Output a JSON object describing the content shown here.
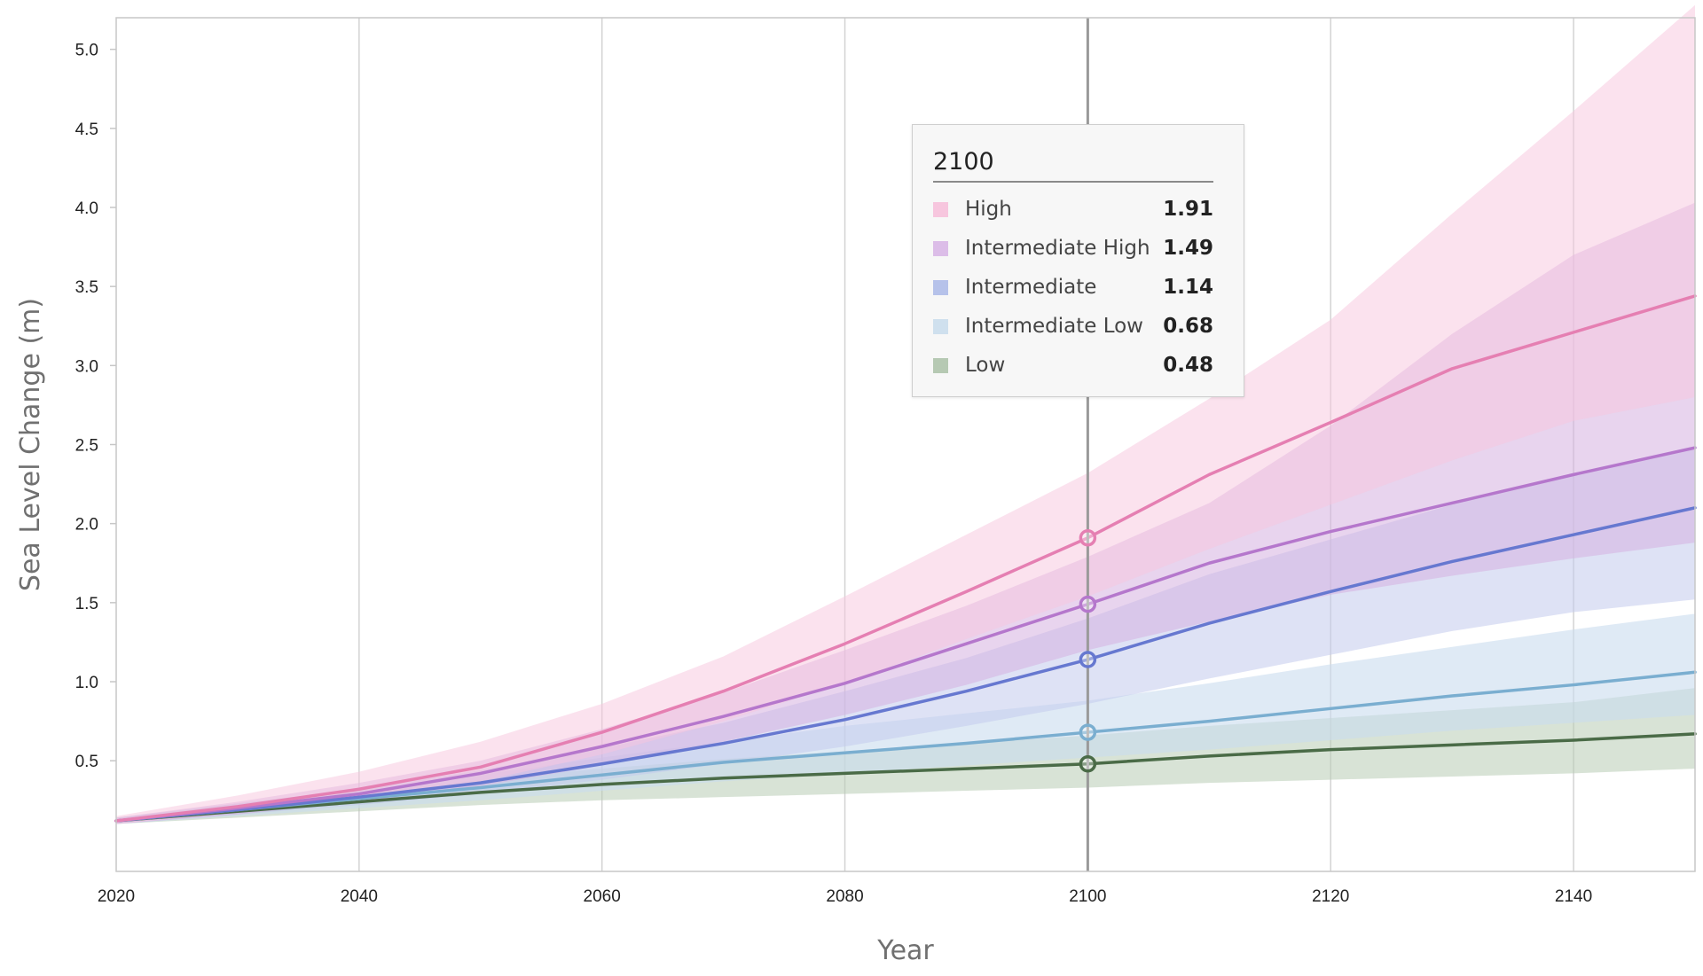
{
  "chart_data": {
    "type": "line",
    "title": "",
    "xlabel": "Year",
    "ylabel": "Sea Level Change (m)",
    "xlim": [
      2020,
      2150
    ],
    "ylim": [
      -0.2,
      5.2
    ],
    "xticks": [
      2020,
      2040,
      2060,
      2080,
      2100,
      2120,
      2140
    ],
    "yticks": [
      0.5,
      1.0,
      1.5,
      2.0,
      2.5,
      3.0,
      3.5,
      4.0,
      4.5,
      5.0
    ],
    "x": [
      2020,
      2030,
      2040,
      2050,
      2060,
      2070,
      2080,
      2090,
      2100,
      2110,
      2120,
      2130,
      2140,
      2150
    ],
    "highlight_year": 2100,
    "series": [
      {
        "name": "Low",
        "color": "#4a6b47",
        "band_color": "#b8ccb4",
        "band_opacity": 0.55,
        "values": [
          0.12,
          0.18,
          0.24,
          0.3,
          0.35,
          0.39,
          0.42,
          0.45,
          0.48,
          0.53,
          0.57,
          0.6,
          0.63,
          0.67
        ],
        "lower": [
          0.1,
          0.14,
          0.18,
          0.22,
          0.25,
          0.27,
          0.29,
          0.31,
          0.33,
          0.36,
          0.38,
          0.4,
          0.42,
          0.45
        ],
        "upper": [
          0.14,
          0.22,
          0.3,
          0.38,
          0.45,
          0.51,
          0.56,
          0.61,
          0.66,
          0.72,
          0.77,
          0.82,
          0.87,
          0.96
        ]
      },
      {
        "name": "Intermediate Low",
        "color": "#7aaed0",
        "band_color": "#c9dcee",
        "band_opacity": 0.6,
        "values": [
          0.12,
          0.19,
          0.26,
          0.33,
          0.41,
          0.49,
          0.55,
          0.61,
          0.68,
          0.75,
          0.83,
          0.91,
          0.98,
          1.06
        ],
        "lower": [
          0.1,
          0.15,
          0.2,
          0.25,
          0.31,
          0.37,
          0.42,
          0.47,
          0.52,
          0.57,
          0.63,
          0.69,
          0.74,
          0.79
        ],
        "upper": [
          0.14,
          0.23,
          0.32,
          0.41,
          0.52,
          0.62,
          0.72,
          0.8,
          0.88,
          0.99,
          1.11,
          1.22,
          1.33,
          1.43
        ]
      },
      {
        "name": "Intermediate",
        "color": "#6678d0",
        "band_color": "#c2caec",
        "band_opacity": 0.55,
        "values": [
          0.12,
          0.19,
          0.27,
          0.36,
          0.48,
          0.61,
          0.76,
          0.94,
          1.14,
          1.37,
          1.57,
          1.76,
          1.93,
          2.1
        ],
        "lower": [
          0.1,
          0.16,
          0.22,
          0.29,
          0.38,
          0.48,
          0.59,
          0.72,
          0.86,
          1.02,
          1.17,
          1.32,
          1.44,
          1.52
        ],
        "upper": [
          0.14,
          0.23,
          0.32,
          0.44,
          0.58,
          0.74,
          0.94,
          1.15,
          1.4,
          1.68,
          1.9,
          2.12,
          2.32,
          2.49
        ]
      },
      {
        "name": "Intermediate High",
        "color": "#b577cc",
        "band_color": "#d5b1e0",
        "band_opacity": 0.55,
        "values": [
          0.12,
          0.2,
          0.29,
          0.42,
          0.59,
          0.78,
          0.99,
          1.24,
          1.49,
          1.75,
          1.95,
          2.13,
          2.31,
          2.48
        ],
        "lower": [
          0.1,
          0.16,
          0.24,
          0.34,
          0.47,
          0.62,
          0.79,
          0.98,
          1.2,
          1.38,
          1.55,
          1.67,
          1.78,
          1.88
        ],
        "upper": [
          0.14,
          0.24,
          0.36,
          0.5,
          0.7,
          0.93,
          1.2,
          1.48,
          1.79,
          2.13,
          2.62,
          3.2,
          3.7,
          4.03
        ]
      },
      {
        "name": "High",
        "color": "#e57fb2",
        "band_color": "#f7c6de",
        "band_opacity": 0.5,
        "values": [
          0.12,
          0.21,
          0.32,
          0.46,
          0.68,
          0.94,
          1.24,
          1.57,
          1.91,
          2.31,
          2.64,
          2.98,
          3.21,
          3.44
        ],
        "lower": [
          0.1,
          0.17,
          0.26,
          0.37,
          0.54,
          0.75,
          0.99,
          1.27,
          1.54,
          1.84,
          2.12,
          2.4,
          2.65,
          2.8
        ],
        "upper": [
          0.15,
          0.28,
          0.43,
          0.62,
          0.86,
          1.16,
          1.54,
          1.93,
          2.32,
          2.79,
          3.29,
          3.96,
          4.61,
          5.28
        ]
      }
    ]
  },
  "tooltip": {
    "title": "2100",
    "rows": [
      {
        "label": "High",
        "value": "1.91",
        "color": "#f7c6de"
      },
      {
        "label": "Intermediate High",
        "value": "1.49",
        "color": "#dcbde8"
      },
      {
        "label": "Intermediate",
        "value": "1.14",
        "color": "#b6c2ea"
      },
      {
        "label": "Intermediate Low",
        "value": "0.68",
        "color": "#cfe0ee"
      },
      {
        "label": "Low",
        "value": "0.48",
        "color": "#b6c9b3"
      }
    ]
  }
}
